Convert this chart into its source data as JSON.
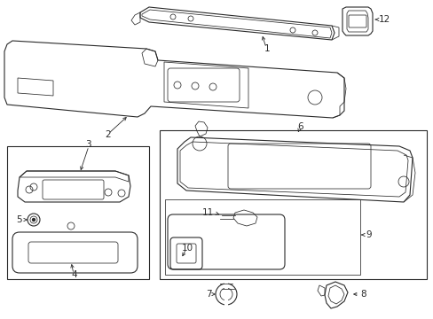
{
  "bg_color": "#ffffff",
  "line_color": "#2a2a2a",
  "label_color": "#111111",
  "label_fontsize": 7.5,
  "fig_w": 4.89,
  "fig_h": 3.6,
  "dpi": 100
}
